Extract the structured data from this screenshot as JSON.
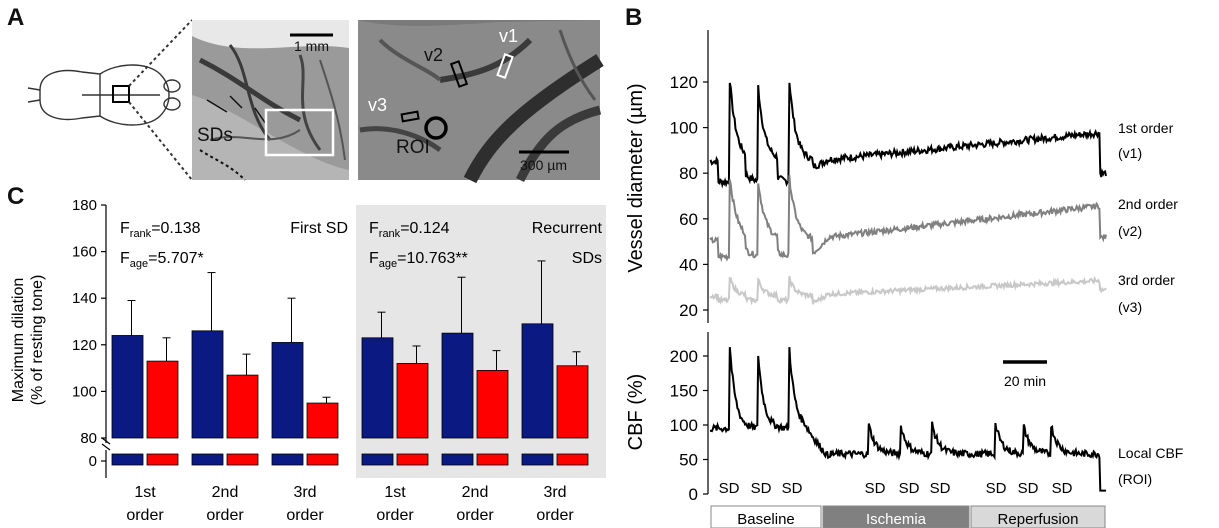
{
  "panel_letters": {
    "a": "A",
    "b": "B",
    "c": "C"
  },
  "panel_a": {
    "scale_1mm": "1 mm",
    "scale_300um": "300 µm",
    "arrow_label": "SDs",
    "vessel_labels": {
      "v1": "v1",
      "v2": "v2",
      "v3": "v3"
    },
    "roi_label": "ROI"
  },
  "panel_c": {
    "ylabel_line1": "Maximum dilation",
    "ylabel_line2": "(% of resting tone)",
    "yticks": [
      "180",
      "160",
      "140",
      "120",
      "100",
      "80",
      "0"
    ],
    "left_group": {
      "title": "First SD",
      "f_rank": "0.138",
      "f_age": "5.707*"
    },
    "right_group": {
      "title_line1": "Recurrent",
      "title_line2": "SDs",
      "f_rank": "0.124",
      "f_age": "10.763**"
    },
    "x_line1": [
      "1st",
      "2nd",
      "3rd",
      "1st",
      "2nd",
      "3rd"
    ],
    "x_line2": [
      "order",
      "order",
      "order",
      "order",
      "order",
      "order"
    ],
    "colors": {
      "blue": "#0a1a82",
      "red": "#ff0000",
      "shade": "#e6e6e6"
    }
  },
  "chart_data": [
    {
      "type": "bar",
      "categories": [
        "1st order",
        "2nd order",
        "3rd order",
        "1st order",
        "2nd order",
        "3rd order"
      ],
      "series": [
        {
          "values": [
            124,
            126,
            121,
            123,
            125,
            129
          ],
          "errors": [
            15,
            25,
            19,
            11,
            24,
            27
          ]
        },
        {
          "values": [
            113,
            107,
            95,
            112,
            109,
            111
          ],
          "errors": [
            10,
            9,
            2.5,
            7.5,
            8.5,
            6
          ]
        }
      ],
      "ylabel": "Maximum dilation (% of resting tone)",
      "ylim": [
        80,
        180
      ],
      "groups": [
        "First SD",
        "Recurrent SDs"
      ]
    },
    {
      "type": "line",
      "ylabel": "Vessel diameter (µm)",
      "ylim": [
        10,
        130
      ],
      "yticks": [
        20,
        40,
        60,
        80,
        100,
        120
      ],
      "series": [
        {
          "name": "1st order (v1)",
          "color": "#000000"
        },
        {
          "name": "2nd order (v2)",
          "color": "#808080"
        },
        {
          "name": "3rd order (v3)",
          "color": "#c8c8c8"
        }
      ],
      "series_labels": [
        [
          "1st order",
          "(v1)"
        ],
        [
          "2nd order",
          "(v2)"
        ],
        [
          "3rd order",
          "(v3)"
        ]
      ]
    },
    {
      "type": "line",
      "ylabel": "CBF (%)",
      "ylim": [
        0,
        240
      ],
      "yticks": [
        0,
        50,
        100,
        150,
        200
      ],
      "series": [
        {
          "name": "Local CBF (ROI)",
          "color": "#000000"
        }
      ],
      "series_label": [
        "Local CBF",
        "(ROI)"
      ],
      "sd_markers": [
        "SD",
        "SD",
        "SD",
        "SD",
        "SD",
        "SD",
        "SD",
        "SD",
        "SD"
      ],
      "scale_bar": "20 min",
      "phases": [
        {
          "label": "Baseline",
          "fill": "#ffffff",
          "text": "#000000"
        },
        {
          "label": "Ischemia",
          "fill": "#808080",
          "text": "#ffffff"
        },
        {
          "label": "Reperfusion",
          "fill": "#d9d9d9",
          "text": "#000000"
        }
      ]
    }
  ]
}
